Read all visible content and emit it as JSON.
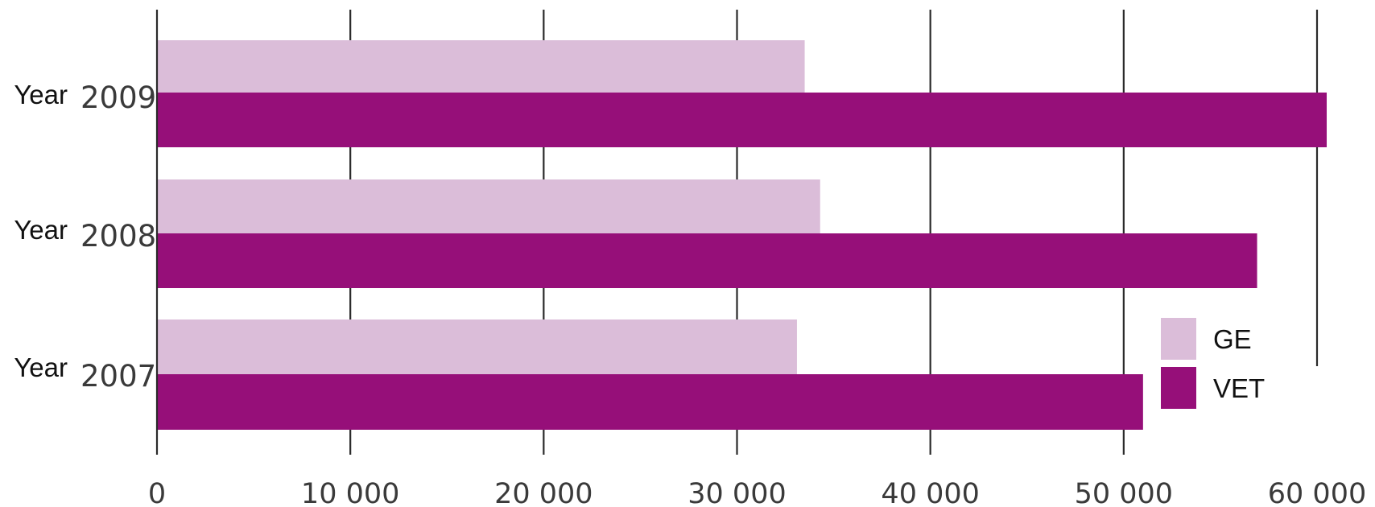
{
  "chart_data": {
    "type": "bar",
    "orientation": "horizontal",
    "categories": [
      {
        "prefix": "Year",
        "year": "2009"
      },
      {
        "prefix": "Year",
        "year": "2008"
      },
      {
        "prefix": "Year",
        "year": "2007"
      }
    ],
    "series": [
      {
        "name": "GE",
        "color": "#dbbdd9",
        "values": [
          33500,
          34300,
          33100
        ]
      },
      {
        "name": "VET",
        "color": "#960f79",
        "values": [
          60500,
          56900,
          51000
        ]
      }
    ],
    "x_ticks": [
      0,
      10000,
      20000,
      30000,
      40000,
      50000,
      60000
    ],
    "x_tick_labels": [
      "0",
      "10 000",
      "20 000",
      "30 000",
      "40 000",
      "50 000",
      "60 000"
    ],
    "xlim": [
      0,
      60000
    ],
    "grid": true,
    "legend_position": "bottom-right",
    "title": "",
    "xlabel": "",
    "ylabel": ""
  }
}
